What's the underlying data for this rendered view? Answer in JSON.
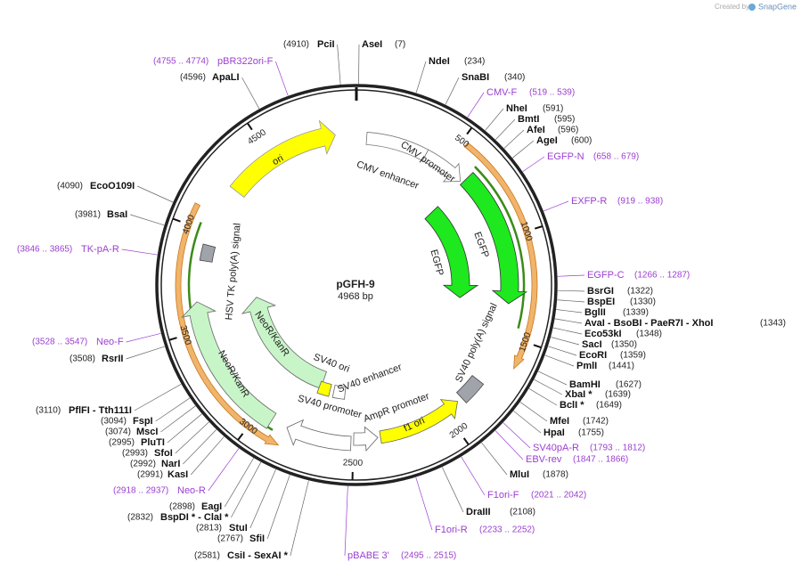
{
  "header": {
    "created_by": "Created by",
    "brand": "SnapGene"
  },
  "plasmid": {
    "name": "pGFH-9",
    "length": 4968,
    "length_unit": "bp"
  },
  "ruler": {
    "ticks": [
      500,
      1000,
      1500,
      2000,
      2500,
      3000,
      3500,
      4000,
      4500
    ]
  },
  "features": [
    "ori",
    "CMV enhancer",
    "CMV promoter",
    "EGFP",
    "EGFP",
    "SV40 poly(A) signal",
    "f1 ori",
    "AmpR promoter",
    "SV40 promoter",
    "SV40 enhancer",
    "SV40 ori",
    "NeoR/KanR",
    "NeoR/KanR",
    "HSV TK poly(A) signal"
  ],
  "sites": [
    {
      "name": "AseI",
      "position": "(7)"
    },
    {
      "name": "NdeI",
      "position": "(234)"
    },
    {
      "name": "SnaBI",
      "position": "(340)"
    },
    {
      "name": "NheI",
      "position": "(591)"
    },
    {
      "name": "BmtI",
      "position": "(595)"
    },
    {
      "name": "AfeI",
      "position": "(596)"
    },
    {
      "name": "AgeI",
      "position": "(600)"
    },
    {
      "name": "BsrGI",
      "position": "(1322)"
    },
    {
      "name": "BspEI",
      "position": "(1330)"
    },
    {
      "name": "BglII",
      "position": "(1339)"
    },
    {
      "name": "AvaI - BsoBI - PaeR7I - XhoI",
      "position": "(1343)"
    },
    {
      "name": "Eco53kI",
      "position": "(1348)"
    },
    {
      "name": "SacI",
      "position": "(1350)"
    },
    {
      "name": "EcoRI",
      "position": "(1359)"
    },
    {
      "name": "PmlI",
      "position": "(1441)"
    },
    {
      "name": "BamHI",
      "position": "(1627)"
    },
    {
      "name": "XbaI *",
      "position": "(1639)"
    },
    {
      "name": "BclI *",
      "position": "(1649)"
    },
    {
      "name": "MfeI",
      "position": "(1742)"
    },
    {
      "name": "HpaI",
      "position": "(1755)"
    },
    {
      "name": "MluI",
      "position": "(1878)"
    },
    {
      "name": "DraIII",
      "position": "(2108)"
    },
    {
      "name": "PciI",
      "position": "(4910)"
    },
    {
      "name": "ApaLI",
      "position": "(4596)"
    },
    {
      "name": "EcoO109I",
      "position": "(4090)"
    },
    {
      "name": "BsaI",
      "position": "(3981)"
    },
    {
      "name": "RsrII",
      "position": "(3508)"
    },
    {
      "name": "PflFI - Tth111I",
      "position": "(3110)"
    },
    {
      "name": "FspI",
      "position": "(3094)"
    },
    {
      "name": "MscI",
      "position": "(3074)"
    },
    {
      "name": "PluTI",
      "position": "(2995)"
    },
    {
      "name": "SfoI",
      "position": "(2993)"
    },
    {
      "name": "NarI",
      "position": "(2992)"
    },
    {
      "name": "KasI",
      "position": "(2991)"
    },
    {
      "name": "EagI",
      "position": "(2898)"
    },
    {
      "name": "BspDI * - ClaI *",
      "position": "(2832)"
    },
    {
      "name": "StuI",
      "position": "(2813)"
    },
    {
      "name": "SfiI",
      "position": "(2767)"
    },
    {
      "name": "CsiI - SexAI *",
      "position": "(2581)"
    }
  ],
  "primers": [
    {
      "name": "CMV-F",
      "range": "(519 .. 539)"
    },
    {
      "name": "EGFP-N",
      "range": "(658 .. 679)"
    },
    {
      "name": "EXFP-R",
      "range": "(919 .. 938)"
    },
    {
      "name": "EGFP-C",
      "range": "(1266 .. 1287)"
    },
    {
      "name": "SV40pA-R",
      "range": "(1793 .. 1812)"
    },
    {
      "name": "EBV-rev",
      "range": "(1847 .. 1866)"
    },
    {
      "name": "F1ori-F",
      "range": "(2021 .. 2042)"
    },
    {
      "name": "F1ori-R",
      "range": "(2233 .. 2252)"
    },
    {
      "name": "pBABE 3'",
      "range": "(2495 .. 2515)"
    },
    {
      "name": "pBR322ori-F",
      "range": "(4755 .. 4774)"
    },
    {
      "name": "TK-pA-R",
      "range": "(3846 .. 3865)"
    },
    {
      "name": "Neo-F",
      "range": "(3528 .. 3547)"
    },
    {
      "name": "Neo-R",
      "range": "(2918 .. 2937)"
    }
  ]
}
